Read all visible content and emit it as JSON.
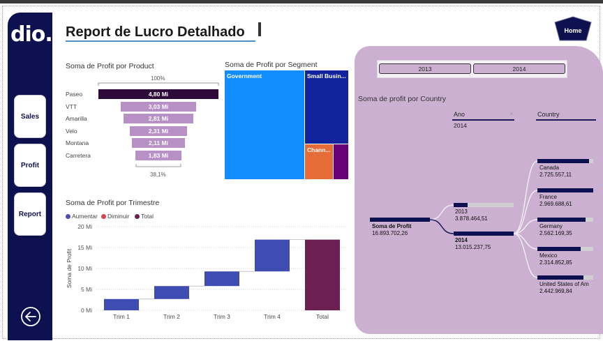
{
  "header": {
    "title": "Report de Lucro Detalhado",
    "home_label": "Home"
  },
  "sidebar": {
    "logo": "dio.",
    "items": [
      {
        "label": "Sales"
      },
      {
        "label": "Profit"
      },
      {
        "label": "Report"
      }
    ]
  },
  "funnel": {
    "title": "Soma de Profit por Product",
    "top_pct": "100%",
    "bottom_pct": "38,1%",
    "items": [
      {
        "label": "Paseo",
        "value": 4.8,
        "text": "4,80 Mi",
        "color": "#2e0a3a"
      },
      {
        "label": "VTT",
        "value": 3.03,
        "text": "3,03 Mi",
        "color": "#b790c6"
      },
      {
        "label": "Amarilla",
        "value": 2.81,
        "text": "2,81 Mi",
        "color": "#b790c6"
      },
      {
        "label": "Velo",
        "value": 2.31,
        "text": "2,31 Mi",
        "color": "#b790c6"
      },
      {
        "label": "Montana",
        "value": 2.11,
        "text": "2,11 Mi",
        "color": "#b790c6"
      },
      {
        "label": "Carretera",
        "value": 1.83,
        "text": "1,83 Mi",
        "color": "#b790c6"
      }
    ]
  },
  "treemap": {
    "title": "Soma de Profit por Segment",
    "tiles": [
      {
        "label": "Government",
        "color": "#118dff"
      },
      {
        "label": "Small Busin...",
        "color": "#12239e"
      },
      {
        "label": "Chann...",
        "color": "#e66c37"
      },
      {
        "label": "",
        "color": "#6b007b"
      }
    ]
  },
  "chart_data": {
    "type": "waterfall",
    "title": "Soma de Profit por Trimestre",
    "ylabel": "Soma de Profit",
    "xlabel": "",
    "ylim": [
      0,
      20
    ],
    "y_ticks": [
      "0 Mi",
      "5 Mi",
      "10 Mi",
      "15 Mi",
      "20 Mi"
    ],
    "y_tick_values": [
      0,
      5,
      10,
      15,
      20
    ],
    "legend": [
      {
        "name": "Aumentar",
        "color": "#4a4fb5"
      },
      {
        "name": "Diminuir",
        "color": "#d6454f"
      },
      {
        "name": "Total",
        "color": "#6b1f52"
      }
    ],
    "categories": [
      "Trim 1",
      "Trim 2",
      "Trim 3",
      "Trim 4",
      "Total"
    ],
    "steps": [
      {
        "start": 0,
        "end": 2.7,
        "kind": "increase"
      },
      {
        "start": 2.7,
        "end": 5.8,
        "kind": "increase"
      },
      {
        "start": 5.8,
        "end": 9.3,
        "kind": "increase"
      },
      {
        "start": 9.3,
        "end": 16.9,
        "kind": "increase"
      },
      {
        "start": 0,
        "end": 16.9,
        "kind": "total"
      }
    ],
    "colors": {
      "increase": "#3f4cb2",
      "total": "#6b1f52"
    }
  },
  "slicer": {
    "options": [
      "2013",
      "2014"
    ]
  },
  "decomp_tree": {
    "title": "Soma de profit por Country",
    "col_ano": "Ano",
    "col_ano_filter": "2014",
    "col_country": "Country",
    "root": {
      "label": "Soma de Profit",
      "value": "16.893.702,26"
    },
    "years": [
      {
        "label": "2013",
        "value": "3.878.464,51",
        "fraction": 0.23
      },
      {
        "label": "2014",
        "value": "13.015.237,75",
        "fraction": 1.0
      }
    ],
    "countries": [
      {
        "label": "Canada",
        "value": "2.725.557,11",
        "fraction": 0.92
      },
      {
        "label": "France",
        "value": "2.969.688,61",
        "fraction": 1.0
      },
      {
        "label": "Germany",
        "value": "2.562.169,35",
        "fraction": 0.86
      },
      {
        "label": "Mexico",
        "value": "2.314.852,85",
        "fraction": 0.78
      },
      {
        "label": "United States of Am",
        "value": "2.442.969,84",
        "fraction": 0.82
      }
    ]
  }
}
